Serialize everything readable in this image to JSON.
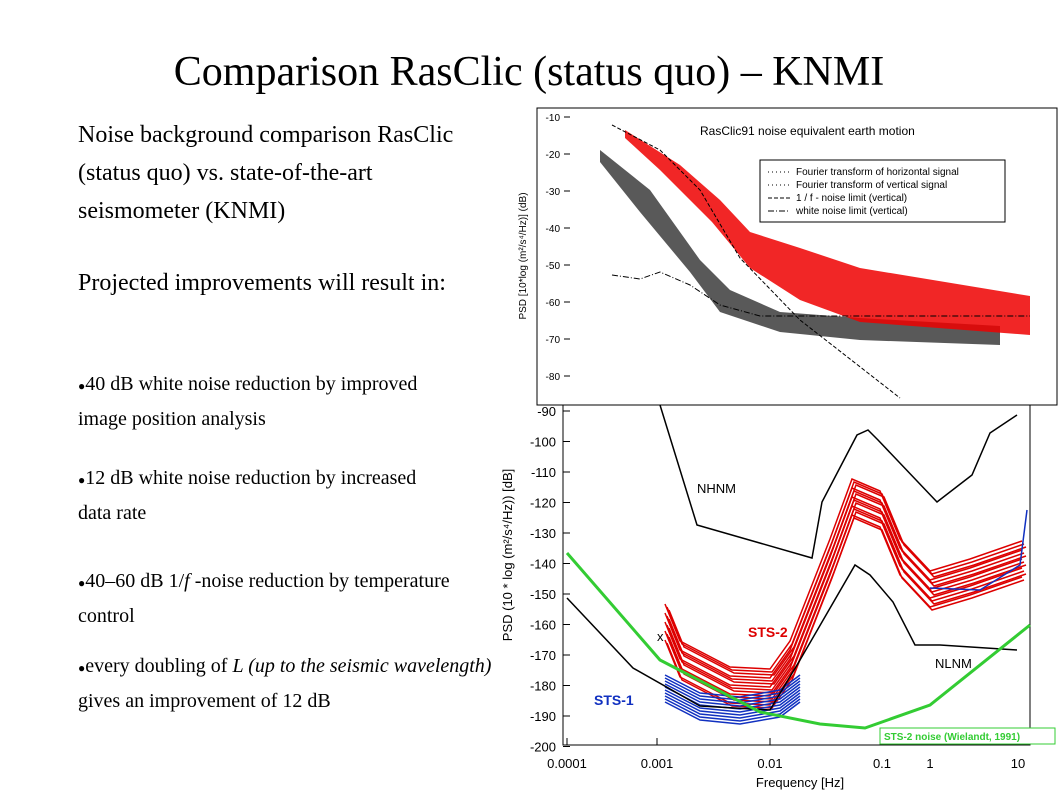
{
  "title": "Comparison RasClic (status quo) – KNMI",
  "paragraphs": [
    "Noise background comparison RasClic (status quo) vs. state-of-the-art seismometer (KNMI)",
    "Projected improvements will result in:"
  ],
  "bullets": [
    [
      "40 dB white noise reduction by improved image position analysis"
    ],
    [
      "12 dB white noise reduction by increased data rate"
    ],
    [
      "40–60 dB 1/",
      "f",
      " -noise reduction by temperature control"
    ],
    [
      "every doubling of ",
      "L (up to the seismic wavelength)",
      " gives an improvement of 12 dB"
    ]
  ],
  "bullet_symbol": "●",
  "top_figure": {
    "title": "RasClic91 noise equivalent earth motion",
    "y_label": "PSD [10*log (m²/s⁴/Hz)] (dB)",
    "yticks": [
      "-10",
      "-20",
      "-30",
      "-40",
      "-50",
      "-60",
      "-70",
      "-80"
    ],
    "legend": [
      "Fourier transform of horizontal signal",
      "Fourier transform of vertical signal",
      "1 / f - noise limit (vertical)",
      "white noise limit (vertical)"
    ]
  },
  "bottom_figure": {
    "y_label": "PSD (10 * log (m²/s⁴/Hz))   [dB]",
    "x_label": "Frequency  [Hz]",
    "yticks": [
      "-90",
      "-100",
      "-110",
      "-120",
      "-130",
      "-140",
      "-150",
      "-160",
      "-170",
      "-180",
      "-190",
      "-200"
    ],
    "xticks": [
      "0.0001",
      "0.001",
      "0.01",
      "0.1",
      "1",
      "10"
    ],
    "labels": [
      "NHNM",
      "NLNM",
      "STS-2",
      "STS-1",
      "STS-2 noise (Wielandt, 1991)",
      "x"
    ]
  }
}
